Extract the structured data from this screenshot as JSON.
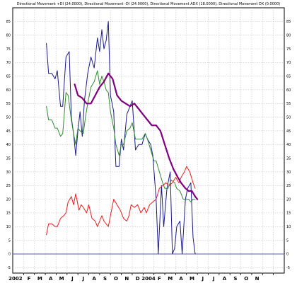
{
  "chart_data": {
    "type": "line",
    "title": "Directional Movement +DI (24.0000), Directional Movement -DI (24.0000), Directional Movement ADX (18.0000), Directional Movement DX (0.0000)",
    "ylim": [
      -7,
      90
    ],
    "yticks": [
      -5,
      0,
      5,
      10,
      15,
      20,
      25,
      30,
      35,
      40,
      45,
      50,
      55,
      60,
      65,
      70,
      75,
      80,
      85
    ],
    "baseline": 0,
    "xlim": [
      0,
      25
    ],
    "x_tick_labels": [
      {
        "x": 0.25,
        "label": "2002"
      },
      {
        "x": 1.5,
        "label": "F"
      },
      {
        "x": 2.5,
        "label": "M"
      },
      {
        "x": 3.5,
        "label": "A"
      },
      {
        "x": 4.5,
        "label": "M"
      },
      {
        "x": 5.5,
        "label": "J"
      },
      {
        "x": 6.5,
        "label": "J"
      },
      {
        "x": 7.5,
        "label": "A"
      },
      {
        "x": 8.5,
        "label": "S"
      },
      {
        "x": 9.5,
        "label": "O"
      },
      {
        "x": 10.5,
        "label": "N"
      },
      {
        "x": 11.5,
        "label": "D"
      },
      {
        "x": 12.5,
        "label": "2004"
      },
      {
        "x": 13.5,
        "label": "F"
      },
      {
        "x": 14.5,
        "label": "M"
      },
      {
        "x": 15.5,
        "label": "A"
      },
      {
        "x": 16.5,
        "label": "M"
      },
      {
        "x": 17.5,
        "label": "J"
      },
      {
        "x": 18.5,
        "label": "J"
      },
      {
        "x": 19.5,
        "label": "A"
      },
      {
        "x": 20.5,
        "label": "S"
      },
      {
        "x": 21.5,
        "label": "O"
      },
      {
        "x": 22.5,
        "label": "N"
      }
    ],
    "series": [
      {
        "color": "#1a1a8c",
        "width": 1,
        "points": [
          [
            3.1,
            77
          ],
          [
            3.3,
            66
          ],
          [
            3.6,
            66
          ],
          [
            3.9,
            64
          ],
          [
            4.1,
            67
          ],
          [
            4.4,
            54
          ],
          [
            4.6,
            54
          ],
          [
            4.9,
            72
          ],
          [
            5.2,
            74
          ],
          [
            5.4,
            50
          ],
          [
            5.6,
            44
          ],
          [
            5.8,
            36
          ],
          [
            6.0,
            45
          ],
          [
            6.2,
            52
          ],
          [
            6.4,
            43
          ],
          [
            6.6,
            56
          ],
          [
            6.9,
            66
          ],
          [
            7.2,
            72
          ],
          [
            7.5,
            68
          ],
          [
            7.8,
            79
          ],
          [
            8.0,
            74
          ],
          [
            8.2,
            82
          ],
          [
            8.4,
            75
          ],
          [
            8.6,
            78
          ],
          [
            8.8,
            85
          ],
          [
            9.0,
            58
          ],
          [
            9.3,
            52
          ],
          [
            9.5,
            32
          ],
          [
            9.8,
            32
          ],
          [
            10.0,
            42
          ],
          [
            10.2,
            38
          ],
          [
            10.5,
            51
          ],
          [
            10.8,
            54
          ],
          [
            11.0,
            56
          ],
          [
            11.3,
            38
          ],
          [
            11.6,
            40
          ],
          [
            11.9,
            40
          ],
          [
            12.2,
            44
          ],
          [
            12.4,
            42
          ],
          [
            12.7,
            40
          ],
          [
            12.9,
            36
          ],
          [
            13.2,
            20
          ],
          [
            13.4,
            0
          ],
          [
            13.7,
            25
          ],
          [
            13.9,
            10
          ],
          [
            14.2,
            24
          ],
          [
            14.5,
            30
          ],
          [
            14.7,
            0
          ],
          [
            14.9,
            2
          ],
          [
            15.1,
            10
          ],
          [
            15.4,
            12
          ],
          [
            15.6,
            0
          ],
          [
            15.9,
            20
          ],
          [
            16.1,
            24
          ],
          [
            16.4,
            26
          ],
          [
            16.6,
            6
          ],
          [
            16.8,
            0
          ]
        ]
      },
      {
        "color": "#2e8b2e",
        "width": 1,
        "points": [
          [
            3.1,
            54
          ],
          [
            3.3,
            49
          ],
          [
            3.6,
            49
          ],
          [
            3.9,
            46
          ],
          [
            4.1,
            46
          ],
          [
            4.4,
            43
          ],
          [
            4.6,
            44
          ],
          [
            4.9,
            59
          ],
          [
            5.1,
            58
          ],
          [
            5.4,
            49
          ],
          [
            5.6,
            44
          ],
          [
            5.8,
            40
          ],
          [
            6.0,
            46
          ],
          [
            6.2,
            45
          ],
          [
            6.5,
            44
          ],
          [
            6.7,
            50
          ],
          [
            6.9,
            55
          ],
          [
            7.2,
            61
          ],
          [
            7.5,
            63
          ],
          [
            7.8,
            67
          ],
          [
            8.0,
            62
          ],
          [
            8.2,
            65
          ],
          [
            8.4,
            63
          ],
          [
            8.6,
            60
          ],
          [
            8.8,
            59
          ],
          [
            9.0,
            52
          ],
          [
            9.3,
            46
          ],
          [
            9.5,
            40
          ],
          [
            9.8,
            36
          ],
          [
            10.0,
            40
          ],
          [
            10.2,
            40
          ],
          [
            10.5,
            45
          ],
          [
            10.8,
            46
          ],
          [
            11.0,
            48
          ],
          [
            11.3,
            42
          ],
          [
            11.6,
            42
          ],
          [
            11.9,
            42
          ],
          [
            12.2,
            44
          ],
          [
            12.4,
            42
          ],
          [
            12.7,
            38
          ],
          [
            13.0,
            34
          ],
          [
            13.2,
            34
          ],
          [
            13.5,
            30
          ],
          [
            13.8,
            26
          ],
          [
            14.0,
            24
          ],
          [
            14.3,
            24
          ],
          [
            14.6,
            27
          ],
          [
            14.9,
            26
          ],
          [
            15.1,
            24
          ],
          [
            15.4,
            23
          ],
          [
            15.7,
            20
          ],
          [
            16.0,
            20
          ],
          [
            16.2,
            20
          ],
          [
            16.4,
            19
          ],
          [
            16.6,
            20
          ],
          [
            16.8,
            20
          ]
        ]
      },
      {
        "color": "#ee1c1c",
        "width": 1,
        "points": [
          [
            3.1,
            7
          ],
          [
            3.3,
            11
          ],
          [
            3.6,
            11
          ],
          [
            3.9,
            10
          ],
          [
            4.1,
            10
          ],
          [
            4.4,
            13
          ],
          [
            4.7,
            14
          ],
          [
            4.9,
            15
          ],
          [
            5.1,
            19
          ],
          [
            5.4,
            21
          ],
          [
            5.6,
            18
          ],
          [
            5.8,
            22
          ],
          [
            6.1,
            16
          ],
          [
            6.3,
            18
          ],
          [
            6.5,
            17
          ],
          [
            6.8,
            15
          ],
          [
            7.0,
            18
          ],
          [
            7.3,
            13
          ],
          [
            7.6,
            12
          ],
          [
            7.8,
            10
          ],
          [
            8.0,
            12
          ],
          [
            8.2,
            14
          ],
          [
            8.4,
            12
          ],
          [
            8.6,
            11
          ],
          [
            8.8,
            10
          ],
          [
            9.0,
            14
          ],
          [
            9.3,
            20
          ],
          [
            9.6,
            18
          ],
          [
            9.9,
            16
          ],
          [
            10.2,
            13
          ],
          [
            10.5,
            12
          ],
          [
            10.7,
            14
          ],
          [
            10.9,
            18
          ],
          [
            11.2,
            17
          ],
          [
            11.5,
            18
          ],
          [
            11.8,
            15
          ],
          [
            12.1,
            17
          ],
          [
            12.3,
            15
          ],
          [
            12.6,
            18
          ],
          [
            12.9,
            19
          ],
          [
            13.2,
            20
          ],
          [
            13.5,
            24
          ],
          [
            13.8,
            25
          ],
          [
            14.1,
            26
          ],
          [
            14.4,
            25
          ],
          [
            14.7,
            26
          ],
          [
            15.0,
            28
          ],
          [
            15.3,
            26
          ],
          [
            15.5,
            28
          ],
          [
            15.8,
            30
          ],
          [
            16.0,
            32
          ],
          [
            16.3,
            30
          ],
          [
            16.6,
            26
          ],
          [
            16.8,
            24
          ]
        ]
      },
      {
        "color": "#800080",
        "width": 2.2,
        "points": [
          [
            5.7,
            62
          ],
          [
            6.0,
            58
          ],
          [
            6.4,
            57
          ],
          [
            6.8,
            55
          ],
          [
            7.2,
            55
          ],
          [
            7.6,
            58
          ],
          [
            8.0,
            61
          ],
          [
            8.4,
            63
          ],
          [
            8.8,
            66
          ],
          [
            9.2,
            64
          ],
          [
            9.6,
            58
          ],
          [
            10.0,
            56
          ],
          [
            10.4,
            55
          ],
          [
            10.8,
            54
          ],
          [
            11.2,
            55
          ],
          [
            11.6,
            53
          ],
          [
            12.0,
            51
          ],
          [
            12.4,
            49
          ],
          [
            12.8,
            47
          ],
          [
            13.2,
            47
          ],
          [
            13.6,
            45
          ],
          [
            14.0,
            40
          ],
          [
            14.4,
            35
          ],
          [
            14.8,
            31
          ],
          [
            15.2,
            28
          ],
          [
            15.5,
            26
          ],
          [
            15.9,
            24
          ],
          [
            16.2,
            23
          ],
          [
            16.5,
            23
          ],
          [
            16.8,
            21
          ],
          [
            17.0,
            20
          ]
        ]
      }
    ]
  }
}
